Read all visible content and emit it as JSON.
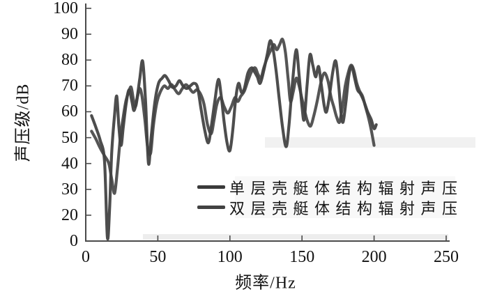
{
  "chart_data": {
    "type": "line",
    "title": "",
    "xlabel": "频率/Hz",
    "ylabel": "声压级/dB",
    "x_tick_labels": [
      "0",
      "50",
      "100",
      "150",
      "200",
      "250"
    ],
    "x_tick_values": [
      0,
      50,
      100,
      150,
      200,
      250
    ],
    "y_tick_labels": [
      "100",
      "90",
      "80",
      "70",
      "60",
      "50",
      "40",
      "30",
      "20",
      "0"
    ],
    "xlim": [
      0,
      250
    ],
    "ylim": [
      0,
      100
    ],
    "grid": false,
    "legend_position": "inside-lower-right",
    "axis_color": "#4a4a4a",
    "text_color": "#121212",
    "series": [
      {
        "name": "单层壳艇体结构辐射声压",
        "color": "#3a3a3a",
        "points": [
          [
            4,
            58.5
          ],
          [
            7,
            54
          ],
          [
            10,
            49
          ],
          [
            13,
            41
          ],
          [
            15,
            3
          ],
          [
            16.5,
            22
          ],
          [
            18,
            44
          ],
          [
            20,
            59
          ],
          [
            21.5,
            66
          ],
          [
            23,
            54
          ],
          [
            24.5,
            47
          ],
          [
            26,
            54
          ],
          [
            28,
            63
          ],
          [
            30,
            68.5
          ],
          [
            32,
            64
          ],
          [
            33.5,
            60.5
          ],
          [
            35.5,
            65
          ],
          [
            37.5,
            73
          ],
          [
            39.5,
            79.5
          ],
          [
            41.5,
            64
          ],
          [
            43.5,
            40
          ],
          [
            45.5,
            51
          ],
          [
            48,
            64
          ],
          [
            50.5,
            71
          ],
          [
            53,
            73
          ],
          [
            55,
            74
          ],
          [
            57.5,
            72
          ],
          [
            60,
            69.5
          ],
          [
            62.5,
            70
          ],
          [
            65,
            72
          ],
          [
            67.5,
            70
          ],
          [
            70,
            69
          ],
          [
            72.5,
            70
          ],
          [
            75,
            71
          ],
          [
            77.5,
            69.5
          ],
          [
            80,
            61
          ],
          [
            82.5,
            53
          ],
          [
            85,
            48
          ],
          [
            87,
            54
          ],
          [
            89.5,
            64
          ],
          [
            92,
            72.5
          ],
          [
            94,
            66
          ],
          [
            96,
            56
          ],
          [
            98,
            48
          ],
          [
            100,
            45
          ],
          [
            102,
            53
          ],
          [
            104,
            65
          ],
          [
            106,
            71
          ],
          [
            108,
            67.5
          ],
          [
            110,
            69
          ],
          [
            112.5,
            75
          ],
          [
            115,
            77
          ],
          [
            117,
            75.5
          ],
          [
            119,
            73.5
          ],
          [
            121,
            71
          ],
          [
            123.5,
            76
          ],
          [
            126,
            82.5
          ],
          [
            128,
            87.5
          ],
          [
            130,
            84
          ],
          [
            132,
            76
          ],
          [
            134,
            66
          ],
          [
            136.5,
            54
          ],
          [
            139,
            46.5
          ],
          [
            141,
            55
          ],
          [
            143.5,
            72
          ],
          [
            146,
            84
          ],
          [
            148,
            74
          ],
          [
            150,
            62
          ],
          [
            151.5,
            57
          ],
          [
            153.5,
            70
          ],
          [
            155.5,
            82
          ],
          [
            157.5,
            78
          ],
          [
            159.5,
            73.5
          ],
          [
            161.5,
            77.5
          ],
          [
            163.5,
            70
          ],
          [
            165.5,
            62
          ],
          [
            167,
            60
          ],
          [
            169,
            66
          ],
          [
            171.5,
            76
          ],
          [
            173.5,
            79.5
          ],
          [
            175.5,
            70
          ],
          [
            177,
            60
          ],
          [
            178.5,
            56
          ],
          [
            180.5,
            64
          ],
          [
            182.5,
            74
          ],
          [
            184.5,
            77.5
          ],
          [
            186.5,
            73
          ],
          [
            188.5,
            68.5
          ],
          [
            190.5,
            67
          ],
          [
            193,
            64
          ],
          [
            195.5,
            60
          ],
          [
            198,
            57
          ],
          [
            200,
            53.5
          ],
          [
            201.5,
            55
          ]
        ]
      },
      {
        "name": "双层壳艇体结构辐射声压",
        "color": "#424242",
        "points": [
          [
            4,
            52.5
          ],
          [
            7,
            49.5
          ],
          [
            10,
            46
          ],
          [
            13,
            43
          ],
          [
            16,
            40
          ],
          [
            18,
            34
          ],
          [
            20,
            28.5
          ],
          [
            22,
            38
          ],
          [
            24,
            50
          ],
          [
            26,
            58
          ],
          [
            28,
            64.5
          ],
          [
            30,
            68
          ],
          [
            31.5,
            69.5
          ],
          [
            33,
            65
          ],
          [
            34.5,
            62
          ],
          [
            36,
            66
          ],
          [
            37.5,
            69
          ],
          [
            39,
            66
          ],
          [
            41,
            57
          ],
          [
            43,
            46
          ],
          [
            45,
            44
          ],
          [
            47,
            55
          ],
          [
            49.5,
            64
          ],
          [
            52,
            68
          ],
          [
            54.5,
            70
          ],
          [
            57,
            69
          ],
          [
            59.5,
            70.5
          ],
          [
            62,
            68.5
          ],
          [
            64.5,
            67
          ],
          [
            67,
            69
          ],
          [
            69.5,
            70.5
          ],
          [
            72,
            69
          ],
          [
            74.5,
            67.5
          ],
          [
            77,
            68.5
          ],
          [
            79.5,
            67
          ],
          [
            82,
            63
          ],
          [
            84.5,
            55
          ],
          [
            87,
            51.5
          ],
          [
            89,
            57
          ],
          [
            91,
            63
          ],
          [
            93.5,
            65.5
          ],
          [
            96,
            62
          ],
          [
            98.5,
            59.5
          ],
          [
            101,
            62
          ],
          [
            103.5,
            65.5
          ],
          [
            105.5,
            64
          ],
          [
            107.5,
            66
          ],
          [
            110,
            68
          ],
          [
            112.5,
            72
          ],
          [
            115,
            75.5
          ],
          [
            117.5,
            77
          ],
          [
            119.5,
            74.5
          ],
          [
            121.5,
            73
          ],
          [
            123.5,
            77
          ],
          [
            126,
            81
          ],
          [
            128.5,
            84
          ],
          [
            130.5,
            86
          ],
          [
            132.5,
            84
          ],
          [
            134.5,
            86
          ],
          [
            136.5,
            88
          ],
          [
            138.5,
            83
          ],
          [
            140.5,
            72
          ],
          [
            142,
            64
          ],
          [
            144,
            68
          ],
          [
            146,
            73
          ],
          [
            148,
            70
          ],
          [
            150,
            65
          ],
          [
            152,
            60
          ],
          [
            154,
            56
          ],
          [
            156,
            54.5
          ],
          [
            158,
            58
          ],
          [
            160.5,
            64
          ],
          [
            163,
            71
          ],
          [
            165.5,
            75
          ],
          [
            168,
            72
          ],
          [
            170,
            66
          ],
          [
            172,
            62
          ],
          [
            174,
            58
          ],
          [
            176,
            56
          ],
          [
            178,
            62
          ],
          [
            180,
            70
          ],
          [
            182,
            75
          ],
          [
            184,
            78
          ],
          [
            186,
            76
          ],
          [
            188,
            71
          ],
          [
            190,
            68
          ],
          [
            192,
            66
          ],
          [
            194,
            62
          ],
          [
            196,
            58
          ],
          [
            198,
            53
          ],
          [
            200,
            47
          ]
        ]
      }
    ]
  }
}
